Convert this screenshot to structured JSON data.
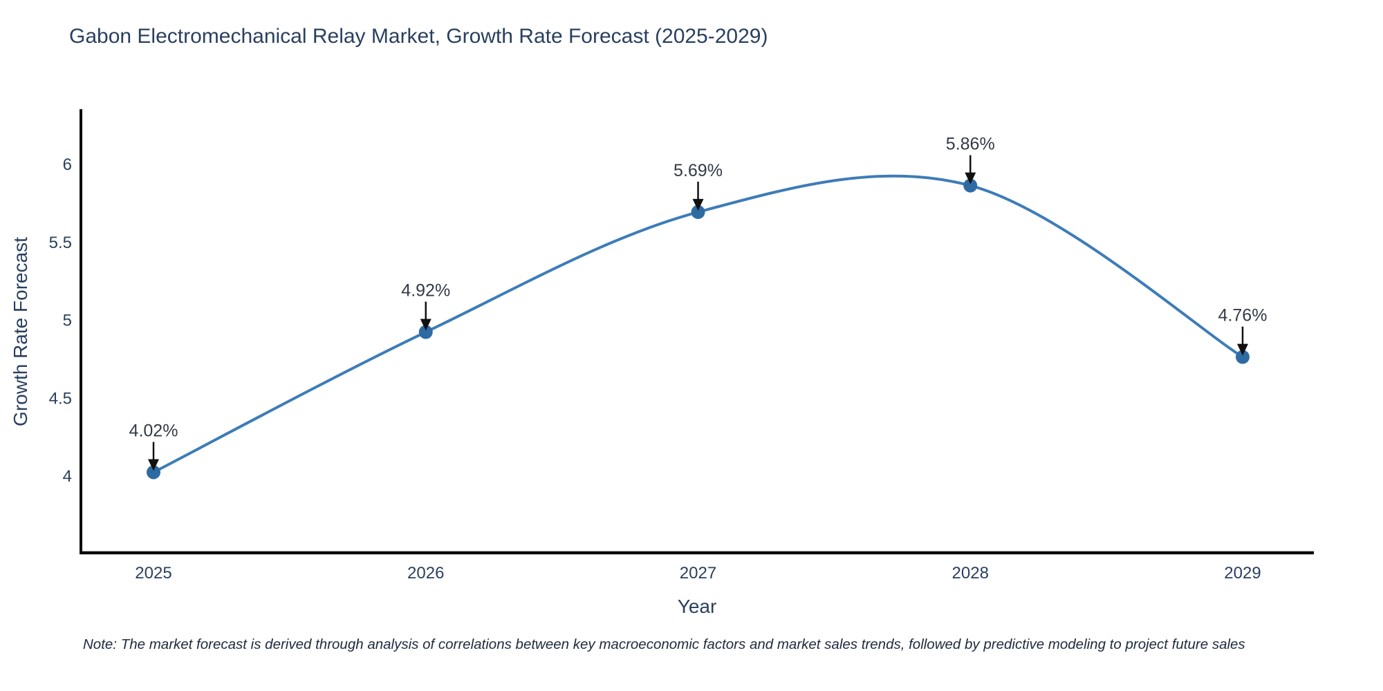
{
  "note": "Note: The market forecast is derived through analysis of correlations between key macroeconomic factors and market sales trends, followed by predictive modeling to project future sales",
  "colors": {
    "background": "#ffffff",
    "line": "#3d7cb8",
    "marker": "#2f6ba3",
    "axis_line": "#0a0a0a",
    "tick_text": "#2a3f5f",
    "annotation_text": "#333a45",
    "arrow": "#111111",
    "title_text": "#2a3f5f"
  },
  "chart_data": {
    "type": "line",
    "title": "Gabon Electromechanical Relay Market, Growth Rate Forecast (2025-2029)",
    "xlabel": "Year",
    "ylabel": "Growth Rate Forecast",
    "x": [
      2025,
      2026,
      2027,
      2028,
      2029
    ],
    "x_tick_labels": [
      "2025",
      "2026",
      "2027",
      "2028",
      "2029"
    ],
    "values": [
      4.02,
      4.92,
      5.69,
      5.86,
      4.76
    ],
    "point_labels": [
      "4.02%",
      "4.92%",
      "5.69%",
      "5.86%",
      "4.76%"
    ],
    "y_ticks": [
      4,
      4.5,
      5,
      5.5,
      6
    ],
    "y_tick_labels": [
      "4",
      "4.5",
      "5",
      "5.5",
      "6"
    ],
    "ylim": [
      3.5,
      6.35
    ],
    "line_shape": "spline",
    "grid": false,
    "legend": "none",
    "marker": "circle",
    "annotation_arrows": true
  }
}
